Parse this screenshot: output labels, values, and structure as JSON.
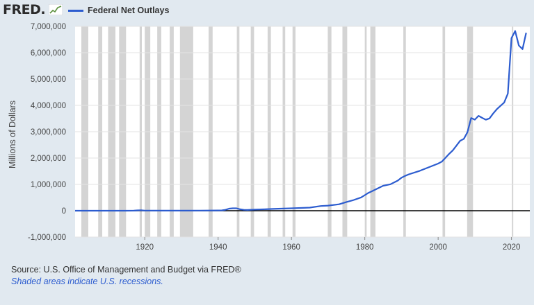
{
  "header": {
    "logo_text": "FRED",
    "logo_dot": "."
  },
  "chart_data": {
    "type": "line",
    "title": "",
    "series": [
      {
        "name": "Federal Net Outlays",
        "color": "#2c5ccf",
        "x": [
          1901,
          1905,
          1910,
          1915,
          1917,
          1918,
          1919,
          1920,
          1921,
          1925,
          1930,
          1935,
          1940,
          1941,
          1942,
          1943,
          1944,
          1945,
          1946,
          1947,
          1948,
          1950,
          1955,
          1960,
          1965,
          1968,
          1970,
          1973,
          1975,
          1977,
          1979,
          1980,
          1981,
          1982,
          1985,
          1987,
          1989,
          1990,
          1991,
          1992,
          1995,
          2000,
          2001,
          2002,
          2003,
          2004,
          2005,
          2006,
          2007,
          2008,
          2009,
          2010,
          2011,
          2012,
          2013,
          2014,
          2015,
          2016,
          2017,
          2018,
          2019,
          2020,
          2021,
          2022,
          2023,
          2024
        ],
        "values": [
          0.5,
          0.6,
          0.7,
          0.8,
          2,
          12.7,
          18.5,
          6.4,
          5,
          3,
          3.3,
          6.4,
          9.5,
          13.7,
          35.1,
          78.6,
          91.3,
          92.7,
          55.2,
          34.5,
          29.8,
          42.6,
          68.4,
          92.2,
          118.2,
          178.1,
          195.6,
          245.7,
          332.3,
          409.2,
          504,
          590.9,
          678.2,
          745.7,
          946.3,
          1004,
          1143.7,
          1253,
          1324.2,
          1381.5,
          1515.7,
          1789,
          1862.8,
          2010.9,
          2159.9,
          2292.8,
          2472,
          2655,
          2728.7,
          2982.5,
          3517.7,
          3457.1,
          3603.1,
          3526.6,
          3454.9,
          3506.3,
          3691.9,
          3852.6,
          3981.6,
          4109,
          4447,
          6553.6,
          6822.5,
          6273.3,
          6134.7,
          6751.6
        ]
      }
    ],
    "x_ticks": [
      1920,
      1940,
      1960,
      1980,
      2000,
      2020
    ],
    "y_ticks": [
      -1000000,
      0,
      1000000,
      2000000,
      3000000,
      4000000,
      5000000,
      6000000,
      7000000
    ],
    "y_tick_labels": [
      "-1,000,000",
      "0",
      "1,000,000",
      "2,000,000",
      "3,000,000",
      "4,000,000",
      "5,000,000",
      "6,000,000",
      "7,000,000"
    ],
    "xlim": [
      1901,
      2025
    ],
    "ylim": [
      -1000000,
      7000000
    ],
    "value_scale": 1000,
    "ylabel": "Millions of Dollars",
    "xlabel": "",
    "legend": "top-left",
    "recessions": [
      [
        1902.7,
        1904.6
      ],
      [
        1907.3,
        1908.4
      ],
      [
        1910,
        1912
      ],
      [
        1913,
        1914.9
      ],
      [
        1918.6,
        1919.2
      ],
      [
        1920,
        1921.5
      ],
      [
        1923.4,
        1924.5
      ],
      [
        1926.8,
        1927.9
      ],
      [
        1929.6,
        1933.2
      ],
      [
        1937.4,
        1938.5
      ],
      [
        1945.1,
        1945.8
      ],
      [
        1948.9,
        1949.8
      ],
      [
        1953.5,
        1954.4
      ],
      [
        1957.6,
        1958.3
      ],
      [
        1960.3,
        1961.1
      ],
      [
        1969.9,
        1970.9
      ],
      [
        1973.9,
        1975.2
      ],
      [
        1980,
        1980.5
      ],
      [
        1981.5,
        1982.9
      ],
      [
        1990.5,
        1991.2
      ],
      [
        2001.2,
        2001.9
      ],
      [
        2007.9,
        2009.5
      ],
      [
        2020.1,
        2020.3
      ]
    ]
  },
  "footer": {
    "source": "Source: U.S. Office of Management and Budget via FRED®",
    "note": "Shaded areas indicate U.S. recessions."
  }
}
